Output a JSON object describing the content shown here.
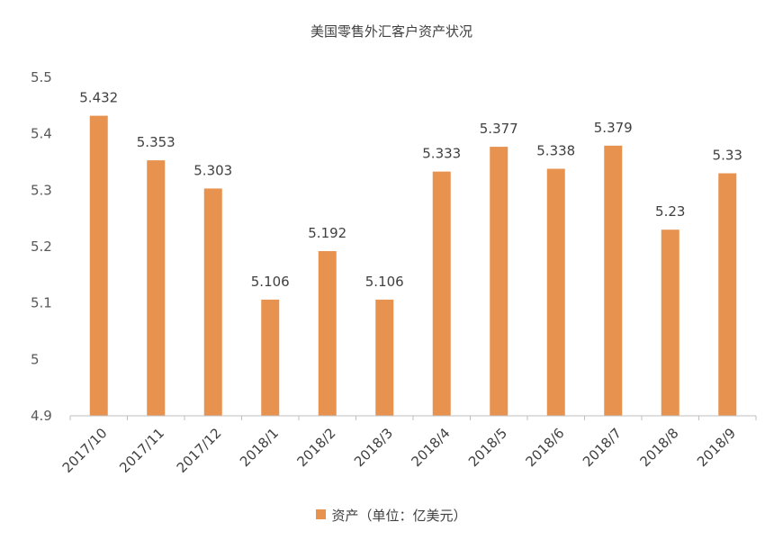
{
  "chart_data": {
    "type": "bar",
    "title": "美国零售外汇客户资产状况",
    "categories": [
      "2017/10",
      "2017/11",
      "2017/12",
      "2018/1",
      "2018/2",
      "2018/3",
      "2018/4",
      "2018/5",
      "2018/6",
      "2018/7",
      "2018/8",
      "2018/9"
    ],
    "series": [
      {
        "name": "资产（单位：亿美元）",
        "values": [
          5.432,
          5.353,
          5.303,
          5.106,
          5.192,
          5.106,
          5.333,
          5.377,
          5.338,
          5.379,
          5.23,
          5.33
        ],
        "value_labels": [
          "5.432",
          "5.353",
          "5.303",
          "5.106",
          "5.192",
          "5.106",
          "5.333",
          "5.377",
          "5.338",
          "5.379",
          "5.23",
          "5.33"
        ]
      }
    ],
    "ylim": [
      4.9,
      5.5
    ],
    "yticks": [
      "4.9",
      "5",
      "5.1",
      "5.2",
      "5.3",
      "5.4",
      "5.5"
    ],
    "xlabel": "",
    "ylabel": "",
    "legend_position": "bottom",
    "bar_color": "#E8924F"
  }
}
